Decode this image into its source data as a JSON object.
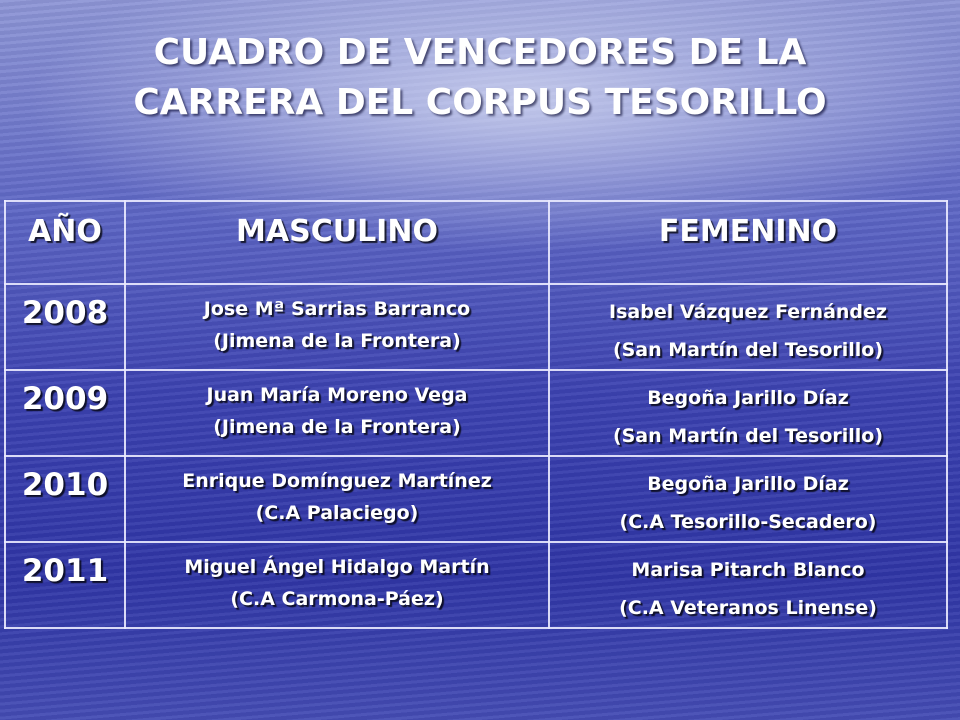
{
  "title": {
    "line1": "CUADRO DE VENCEDORES DE LA",
    "line2": "CARRERA DEL CORPUS TESORILLO"
  },
  "table": {
    "headers": [
      "AÑO",
      "MASCULINO",
      "FEMENINO"
    ],
    "rows": [
      {
        "year": "2008",
        "male_name": "Jose Mª Sarrias Barranco",
        "male_club": "(Jimena de la Frontera)",
        "female_name": "Isabel Vázquez Fernández",
        "female_club": "(San Martín del Tesorillo)"
      },
      {
        "year": "2009",
        "male_name": "Juan María Moreno Vega",
        "male_club": "(Jimena de la Frontera)",
        "female_name": "Begoña Jarillo Díaz",
        "female_club": "(San Martín del Tesorillo)"
      },
      {
        "year": "2010",
        "male_name": "Enrique Domínguez Martínez",
        "male_club": "(C.A Palaciego)",
        "female_name": "Begoña Jarillo Díaz",
        "female_club": "(C.A Tesorillo-Secadero)"
      },
      {
        "year": "2011",
        "male_name": "Miguel Ángel Hidalgo Martín",
        "male_club": "(C.A Carmona-Páez)",
        "female_name": "Marisa Pitarch Blanco",
        "female_club": "(C.A Veteranos Linense)"
      }
    ]
  }
}
